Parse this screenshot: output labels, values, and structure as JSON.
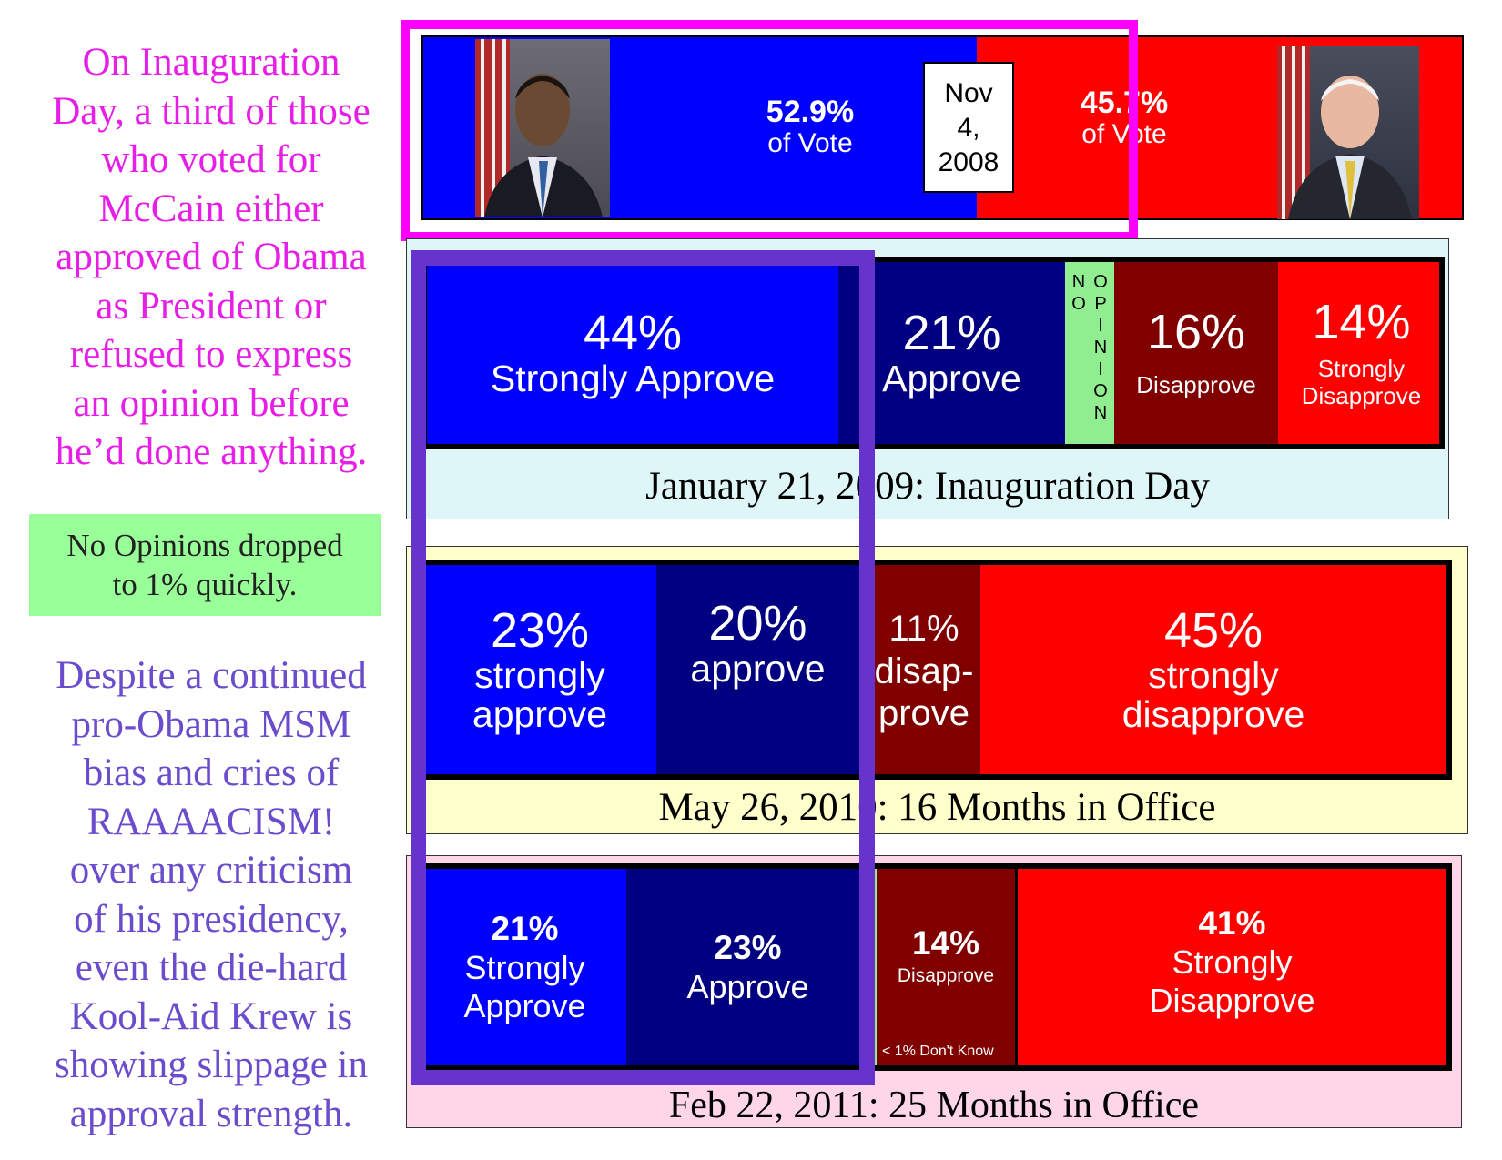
{
  "left": {
    "inaug_note": [
      "On Inauguration",
      "Day, a third of those",
      "who voted for",
      "McCain either",
      "approved of Obama",
      "as President or",
      "refused to express",
      "an opinion before",
      "he’d done anything."
    ],
    "no_opinion_note": [
      "No Opinions dropped",
      "to 1% quickly."
    ],
    "slippage_note": [
      "Despite a continued",
      "pro-Obama MSM",
      "bias and cries of",
      "RAAAACISM!",
      "over any criticism",
      "of his presidency,",
      "even the die-hard",
      "Kool-Aid Krew is",
      "showing slippage in",
      "approval strength."
    ]
  },
  "chart_data": [
    {
      "type": "bar",
      "orientation": "horizontal-stacked",
      "date_label": [
        "Nov",
        "4,",
        "2008"
      ],
      "categories": [
        "Obama",
        "McCain"
      ],
      "values": [
        52.9,
        45.7
      ],
      "labels": [
        {
          "pct": "52.9%",
          "text": "of Vote"
        },
        {
          "pct": "45.7%",
          "text": "of Vote"
        }
      ],
      "colors": [
        "#0000ff",
        "#ff0000"
      ]
    },
    {
      "type": "bar",
      "orientation": "horizontal-stacked",
      "title": "January 21, 2009: Inauguration Day",
      "categories": [
        "Strongly Approve",
        "Approve",
        "No Opinion",
        "Disapprove",
        "Strongly Disapprove"
      ],
      "values": [
        44,
        21,
        5,
        16,
        14
      ],
      "labels": [
        {
          "pct": "44%",
          "text": "Strongly Approve"
        },
        {
          "pct": "21%",
          "text": "Approve"
        },
        {
          "pct": "",
          "text": "NO OPINION",
          "col1": [
            "N",
            "O"
          ],
          "col2": [
            "O",
            "P",
            "I",
            "N",
            "I",
            "O",
            "N"
          ]
        },
        {
          "pct": "16%",
          "text": "Disapprove"
        },
        {
          "pct": "14%",
          "text": [
            "Strongly",
            "Disapprove"
          ]
        }
      ],
      "colors": [
        "#0000ff",
        "#000080",
        "#90ee90",
        "#800000",
        "#ff0000"
      ]
    },
    {
      "type": "bar",
      "orientation": "horizontal-stacked",
      "title": "May 26, 2010: 16 Months in Office",
      "categories": [
        "strongly approve",
        "approve",
        "no opinion",
        "disapprove",
        "strongly disapprove"
      ],
      "values": [
        23,
        20,
        1,
        11,
        45
      ],
      "labels": [
        {
          "pct": "23%",
          "text": [
            "strongly",
            "approve"
          ]
        },
        {
          "pct": "20%",
          "text": "approve"
        },
        {
          "pct": "",
          "text": ""
        },
        {
          "pct": "11%",
          "text": [
            "disap-",
            "prove"
          ]
        },
        {
          "pct": "45%",
          "text": [
            "strongly",
            "disapprove"
          ]
        }
      ],
      "colors": [
        "#0000ff",
        "#000080",
        "#90ee90",
        "#800000",
        "#ff0000"
      ]
    },
    {
      "type": "bar",
      "orientation": "horizontal-stacked",
      "title": "Feb 22, 2011: 25 Months in Office",
      "categories": [
        "Strongly Approve",
        "Approve",
        "Don't Know",
        "Disapprove",
        "Strongly Disapprove"
      ],
      "values": [
        21,
        23,
        1,
        14,
        41
      ],
      "labels": [
        {
          "pct": "21%",
          "text": [
            "Strongly",
            "Approve"
          ]
        },
        {
          "pct": "23%",
          "text": "Approve"
        },
        {
          "pct": "",
          "text": ""
        },
        {
          "pct": "14%",
          "text": "Disapprove",
          "note": "< 1% Don't Know"
        },
        {
          "pct": "41%",
          "text": [
            "Strongly",
            "Disapprove"
          ]
        }
      ],
      "colors": [
        "#0000ff",
        "#000080",
        "#90ee90",
        "#800000",
        "#ff0000"
      ]
    }
  ],
  "colors": {
    "magenta_text": "#e61ee6",
    "purple_text": "#6a4ccc",
    "magenta_frame": "#ff00ff",
    "purple_frame": "#6633cc"
  }
}
